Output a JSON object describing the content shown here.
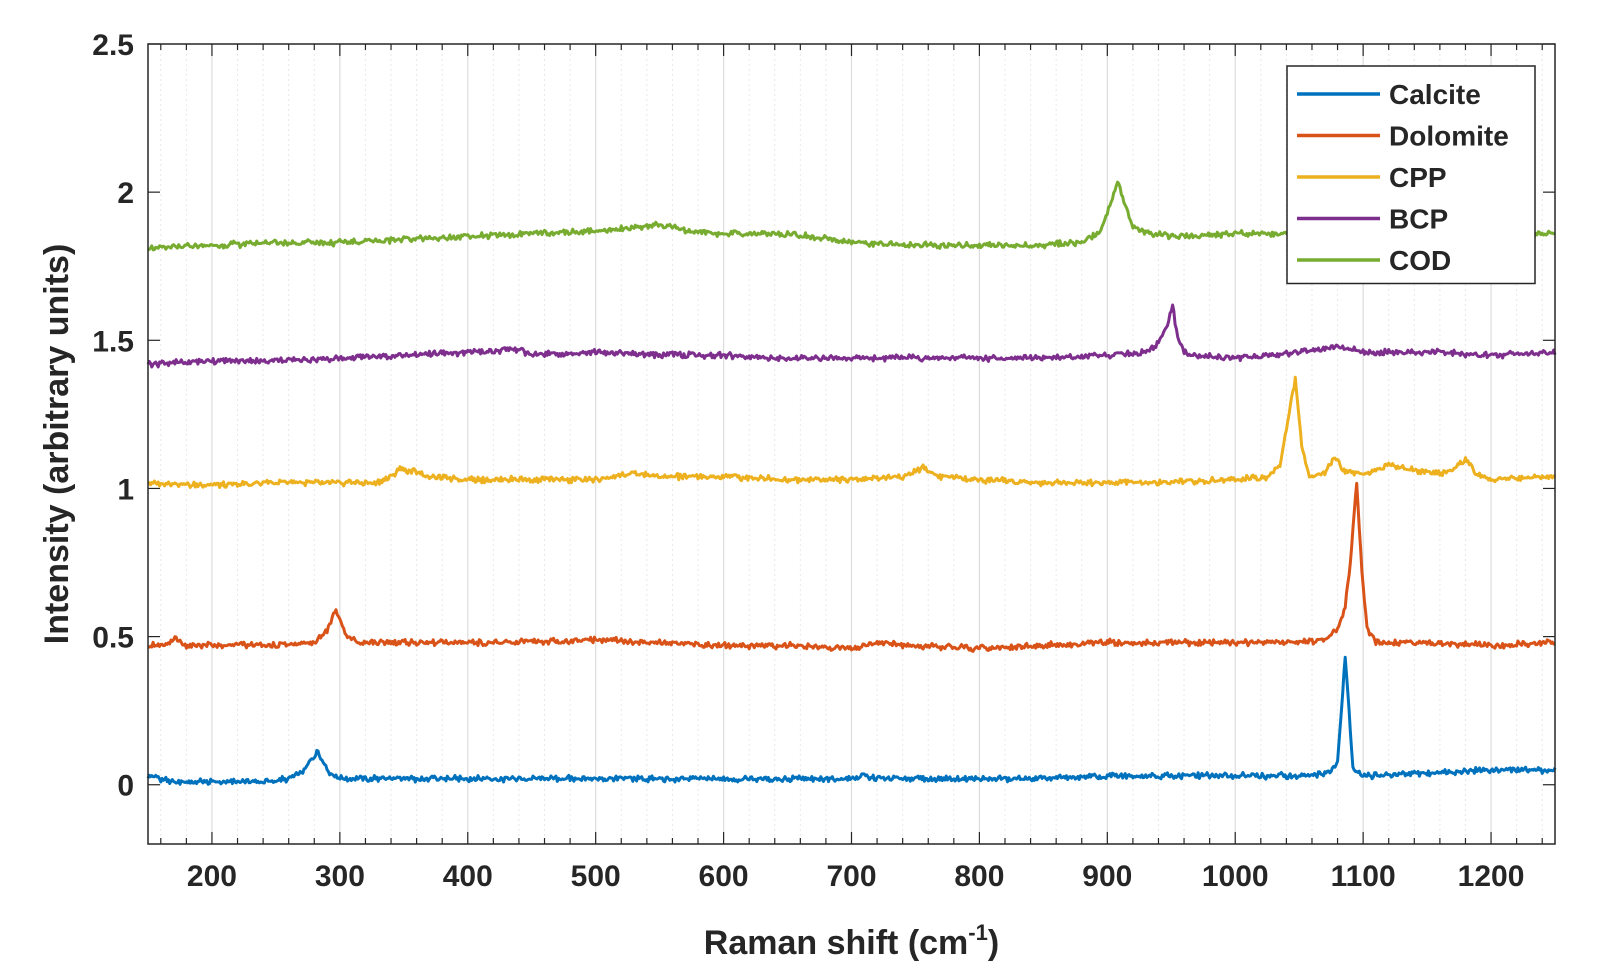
{
  "chart_data": {
    "type": "line",
    "xlabel_main": "Raman shift (cm",
    "xlabel_sup": "-1",
    "xlabel_end": ")",
    "ylabel": "Intensity (arbitrary units)",
    "xlim": [
      150,
      1250
    ],
    "ylim": [
      -0.2,
      2.5
    ],
    "xticks": [
      200,
      300,
      400,
      500,
      600,
      700,
      800,
      900,
      1000,
      1100,
      1200
    ],
    "xtick_labels": [
      "200",
      "300",
      "400",
      "500",
      "600",
      "700",
      "800",
      "900",
      "1000",
      "1100",
      "1200"
    ],
    "yticks": [
      0,
      0.5,
      1,
      1.5,
      2,
      2.5
    ],
    "ytick_labels": [
      "0",
      "0.5",
      "1",
      "1.5",
      "2",
      "2.5"
    ],
    "grid": "vertical major and minor",
    "legend_position": "top-right",
    "series": [
      {
        "name": "Calcite",
        "color": "#0072BD",
        "points": [
          [
            150,
            0.03
          ],
          [
            160,
            0.02
          ],
          [
            170,
            0.01
          ],
          [
            200,
            0.01
          ],
          [
            240,
            0.01
          ],
          [
            260,
            0.02
          ],
          [
            270,
            0.04
          ],
          [
            275,
            0.07
          ],
          [
            280,
            0.1
          ],
          [
            283,
            0.11
          ],
          [
            287,
            0.08
          ],
          [
            292,
            0.04
          ],
          [
            300,
            0.02
          ],
          [
            350,
            0.02
          ],
          [
            400,
            0.02
          ],
          [
            450,
            0.02
          ],
          [
            500,
            0.02
          ],
          [
            550,
            0.02
          ],
          [
            600,
            0.02
          ],
          [
            650,
            0.02
          ],
          [
            700,
            0.02
          ],
          [
            710,
            0.03
          ],
          [
            720,
            0.02
          ],
          [
            800,
            0.02
          ],
          [
            850,
            0.02
          ],
          [
            900,
            0.03
          ],
          [
            950,
            0.03
          ],
          [
            1000,
            0.03
          ],
          [
            1050,
            0.03
          ],
          [
            1075,
            0.04
          ],
          [
            1080,
            0.08
          ],
          [
            1083,
            0.25
          ],
          [
            1086,
            0.44
          ],
          [
            1089,
            0.25
          ],
          [
            1092,
            0.06
          ],
          [
            1100,
            0.03
          ],
          [
            1150,
            0.04
          ],
          [
            1200,
            0.05
          ],
          [
            1250,
            0.05
          ]
        ]
      },
      {
        "name": "Dolomite",
        "color": "#D95319",
        "points": [
          [
            150,
            0.47
          ],
          [
            165,
            0.47
          ],
          [
            172,
            0.5
          ],
          [
            178,
            0.47
          ],
          [
            200,
            0.47
          ],
          [
            250,
            0.47
          ],
          [
            280,
            0.48
          ],
          [
            290,
            0.52
          ],
          [
            296,
            0.59
          ],
          [
            300,
            0.56
          ],
          [
            305,
            0.5
          ],
          [
            315,
            0.48
          ],
          [
            350,
            0.48
          ],
          [
            400,
            0.48
          ],
          [
            450,
            0.48
          ],
          [
            500,
            0.49
          ],
          [
            550,
            0.48
          ],
          [
            600,
            0.47
          ],
          [
            650,
            0.47
          ],
          [
            700,
            0.46
          ],
          [
            720,
            0.48
          ],
          [
            740,
            0.47
          ],
          [
            800,
            0.46
          ],
          [
            850,
            0.47
          ],
          [
            900,
            0.48
          ],
          [
            950,
            0.48
          ],
          [
            1000,
            0.48
          ],
          [
            1050,
            0.48
          ],
          [
            1070,
            0.49
          ],
          [
            1080,
            0.52
          ],
          [
            1086,
            0.6
          ],
          [
            1090,
            0.75
          ],
          [
            1095,
            1.02
          ],
          [
            1099,
            0.72
          ],
          [
            1103,
            0.53
          ],
          [
            1110,
            0.48
          ],
          [
            1150,
            0.48
          ],
          [
            1200,
            0.47
          ],
          [
            1250,
            0.48
          ]
        ]
      },
      {
        "name": "CPP",
        "color": "#EDB120",
        "points": [
          [
            150,
            1.02
          ],
          [
            200,
            1.01
          ],
          [
            250,
            1.02
          ],
          [
            300,
            1.02
          ],
          [
            330,
            1.02
          ],
          [
            340,
            1.04
          ],
          [
            347,
            1.07
          ],
          [
            352,
            1.06
          ],
          [
            358,
            1.06
          ],
          [
            370,
            1.04
          ],
          [
            400,
            1.03
          ],
          [
            450,
            1.03
          ],
          [
            500,
            1.03
          ],
          [
            530,
            1.05
          ],
          [
            550,
            1.04
          ],
          [
            600,
            1.04
          ],
          [
            650,
            1.03
          ],
          [
            700,
            1.03
          ],
          [
            740,
            1.04
          ],
          [
            757,
            1.07
          ],
          [
            770,
            1.04
          ],
          [
            800,
            1.03
          ],
          [
            850,
            1.02
          ],
          [
            900,
            1.02
          ],
          [
            950,
            1.02
          ],
          [
            1000,
            1.03
          ],
          [
            1025,
            1.04
          ],
          [
            1035,
            1.08
          ],
          [
            1040,
            1.2
          ],
          [
            1047,
            1.37
          ],
          [
            1052,
            1.14
          ],
          [
            1058,
            1.04
          ],
          [
            1070,
            1.05
          ],
          [
            1078,
            1.11
          ],
          [
            1084,
            1.06
          ],
          [
            1100,
            1.05
          ],
          [
            1120,
            1.08
          ],
          [
            1140,
            1.06
          ],
          [
            1160,
            1.05
          ],
          [
            1172,
            1.07
          ],
          [
            1180,
            1.1
          ],
          [
            1188,
            1.05
          ],
          [
            1200,
            1.03
          ],
          [
            1250,
            1.04
          ]
        ]
      },
      {
        "name": "BCP",
        "color": "#7E2F8E",
        "points": [
          [
            150,
            1.42
          ],
          [
            200,
            1.43
          ],
          [
            250,
            1.43
          ],
          [
            300,
            1.44
          ],
          [
            350,
            1.45
          ],
          [
            400,
            1.46
          ],
          [
            440,
            1.47
          ],
          [
            450,
            1.45
          ],
          [
            500,
            1.46
          ],
          [
            550,
            1.45
          ],
          [
            600,
            1.45
          ],
          [
            650,
            1.44
          ],
          [
            700,
            1.44
          ],
          [
            750,
            1.44
          ],
          [
            800,
            1.44
          ],
          [
            850,
            1.44
          ],
          [
            900,
            1.45
          ],
          [
            930,
            1.46
          ],
          [
            940,
            1.49
          ],
          [
            947,
            1.55
          ],
          [
            951,
            1.62
          ],
          [
            955,
            1.5
          ],
          [
            962,
            1.45
          ],
          [
            1000,
            1.44
          ],
          [
            1050,
            1.46
          ],
          [
            1080,
            1.48
          ],
          [
            1100,
            1.46
          ],
          [
            1150,
            1.46
          ],
          [
            1200,
            1.45
          ],
          [
            1250,
            1.46
          ]
        ]
      },
      {
        "name": "COD",
        "color": "#77AC30",
        "points": [
          [
            150,
            1.81
          ],
          [
            200,
            1.82
          ],
          [
            250,
            1.83
          ],
          [
            300,
            1.83
          ],
          [
            350,
            1.84
          ],
          [
            400,
            1.85
          ],
          [
            450,
            1.86
          ],
          [
            500,
            1.87
          ],
          [
            550,
            1.89
          ],
          [
            570,
            1.87
          ],
          [
            600,
            1.86
          ],
          [
            650,
            1.86
          ],
          [
            700,
            1.83
          ],
          [
            750,
            1.82
          ],
          [
            800,
            1.82
          ],
          [
            850,
            1.82
          ],
          [
            880,
            1.83
          ],
          [
            895,
            1.87
          ],
          [
            903,
            1.97
          ],
          [
            908,
            2.04
          ],
          [
            913,
            1.97
          ],
          [
            920,
            1.88
          ],
          [
            935,
            1.86
          ],
          [
            950,
            1.85
          ],
          [
            1000,
            1.86
          ],
          [
            1050,
            1.86
          ],
          [
            1100,
            1.87
          ],
          [
            1150,
            1.87
          ],
          [
            1200,
            1.86
          ],
          [
            1250,
            1.86
          ]
        ]
      }
    ]
  }
}
